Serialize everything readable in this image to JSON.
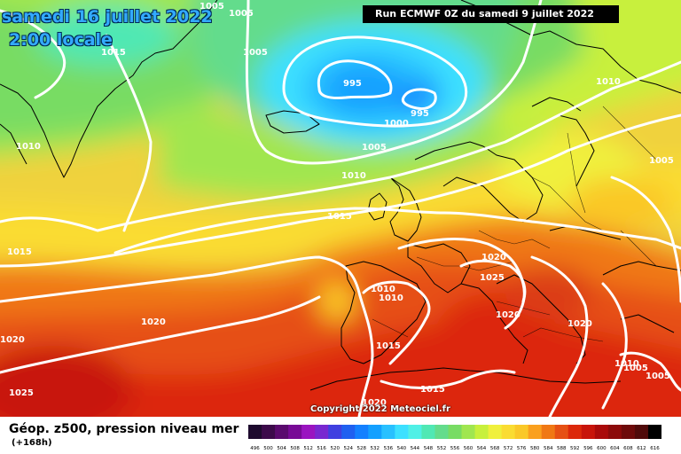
{
  "header": {
    "valid_date": "samedi 16 juillet 2022",
    "valid_time": "2:00 locale",
    "run_info": "Run ECMWF 0Z du samedi 9 juillet 2022"
  },
  "copyright": "Copyright 2022 Meteociel.fr",
  "footer": {
    "parameter": "Géop. z500, pression niveau mer",
    "lead_time": "(+168h)"
  },
  "legend": {
    "values": [
      "496",
      "500",
      "504",
      "508",
      "512",
      "516",
      "520",
      "524",
      "528",
      "532",
      "536",
      "540",
      "544",
      "548",
      "552",
      "556",
      "560",
      "564",
      "568",
      "572",
      "576",
      "580",
      "584",
      "588",
      "592",
      "596",
      "600",
      "604",
      "608",
      "612",
      "616"
    ],
    "colors": [
      "#1e0a2e",
      "#3c0a4a",
      "#5a0a6e",
      "#780a96",
      "#9a14c0",
      "#7828d0",
      "#4040e0",
      "#2060f0",
      "#1480ff",
      "#14a0ff",
      "#28c0ff",
      "#3ce0ff",
      "#50f0e6",
      "#50e8b4",
      "#64dc8c",
      "#78dc64",
      "#a0e650",
      "#c8f03c",
      "#f0f03c",
      "#fadc32",
      "#fac828",
      "#faa01e",
      "#f07814",
      "#e65014",
      "#dc280a",
      "#c8140a",
      "#aa0a0a",
      "#8c0a0a",
      "#6e0a0a",
      "#500a0a",
      "#000000"
    ]
  },
  "isobars": [
    {
      "value": "1005",
      "id": "a"
    },
    {
      "value": "1005",
      "id": "b"
    },
    {
      "value": "1015",
      "id": "c"
    },
    {
      "value": "995",
      "id": "d"
    },
    {
      "value": "995",
      "id": "e"
    },
    {
      "value": "1000",
      "id": "f"
    },
    {
      "value": "1005",
      "id": "g"
    },
    {
      "value": "1010",
      "id": "h"
    },
    {
      "value": "1005",
      "id": "i"
    },
    {
      "value": "1010",
      "id": "j"
    },
    {
      "value": "1010",
      "id": "k"
    },
    {
      "value": "1015",
      "id": "l"
    },
    {
      "value": "1015",
      "id": "m"
    },
    {
      "value": "1020",
      "id": "n"
    },
    {
      "value": "1025",
      "id": "o"
    },
    {
      "value": "1010",
      "id": "p"
    },
    {
      "value": "1010",
      "id": "q"
    },
    {
      "value": "1020",
      "id": "r"
    },
    {
      "value": "1020",
      "id": "s"
    },
    {
      "value": "1015",
      "id": "t"
    },
    {
      "value": "1020",
      "id": "u"
    },
    {
      "value": "1015",
      "id": "v"
    },
    {
      "value": "1010",
      "id": "w"
    },
    {
      "value": "1005",
      "id": "x"
    },
    {
      "value": "1025",
      "id": "y"
    },
    {
      "value": "1020",
      "id": "z"
    },
    {
      "value": "1005",
      "id": "aa"
    },
    {
      "value": "1005",
      "id": "ab"
    }
  ]
}
